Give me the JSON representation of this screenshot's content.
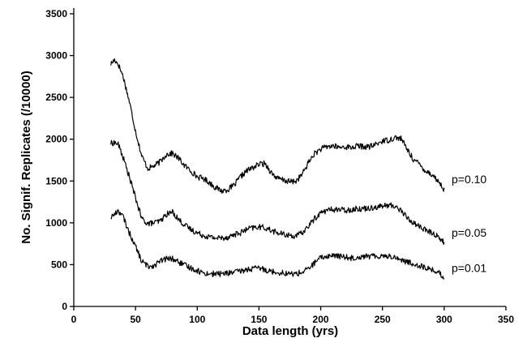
{
  "chart_data": {
    "type": "line",
    "title": "",
    "xlabel": "Data length (yrs)",
    "ylabel": "No. Signif. Replicates (/10000)",
    "xlim": [
      0,
      350
    ],
    "ylim": [
      0,
      3500
    ],
    "xticks": [
      "0",
      "50",
      "100",
      "150",
      "200",
      "250",
      "300",
      "350"
    ],
    "yticks": [
      "0",
      "500",
      "1000",
      "1500",
      "2000",
      "2500",
      "3000",
      "3500"
    ],
    "grid": false,
    "legend": "none",
    "line_color": "#000000",
    "series": [
      {
        "name": "p=0.10",
        "x": [
          30,
          33,
          36,
          40,
          45,
          50,
          55,
          60,
          65,
          70,
          75,
          80,
          85,
          90,
          95,
          100,
          105,
          110,
          115,
          120,
          125,
          130,
          135,
          140,
          145,
          150,
          155,
          160,
          165,
          170,
          175,
          180,
          185,
          190,
          195,
          200,
          205,
          210,
          215,
          220,
          225,
          230,
          235,
          240,
          245,
          250,
          255,
          260,
          265,
          270,
          275,
          280,
          285,
          290,
          295,
          300
        ],
        "y": [
          2900,
          2950,
          2900,
          2750,
          2450,
          2100,
          1800,
          1650,
          1680,
          1730,
          1820,
          1830,
          1770,
          1680,
          1620,
          1550,
          1530,
          1480,
          1420,
          1380,
          1400,
          1450,
          1550,
          1620,
          1660,
          1700,
          1710,
          1600,
          1530,
          1510,
          1490,
          1500,
          1580,
          1720,
          1830,
          1880,
          1910,
          1920,
          1900,
          1910,
          1900,
          1920,
          1910,
          1910,
          1940,
          1980,
          1990,
          2020,
          2010,
          1880,
          1760,
          1700,
          1620,
          1580,
          1500,
          1400
        ]
      },
      {
        "name": "p=0.05",
        "x": [
          30,
          33,
          36,
          40,
          45,
          50,
          55,
          60,
          65,
          70,
          75,
          80,
          85,
          90,
          95,
          100,
          105,
          110,
          115,
          120,
          125,
          130,
          135,
          140,
          145,
          150,
          155,
          160,
          165,
          170,
          175,
          180,
          185,
          190,
          195,
          200,
          205,
          210,
          215,
          220,
          225,
          230,
          235,
          240,
          245,
          250,
          255,
          260,
          265,
          270,
          275,
          280,
          285,
          290,
          295,
          300
        ],
        "y": [
          1950,
          1960,
          1940,
          1780,
          1550,
          1300,
          1050,
          990,
          1000,
          1020,
          1100,
          1130,
          1040,
          970,
          920,
          880,
          850,
          830,
          820,
          820,
          830,
          860,
          880,
          920,
          940,
          950,
          940,
          910,
          880,
          860,
          850,
          840,
          880,
          960,
          1050,
          1120,
          1150,
          1160,
          1160,
          1150,
          1160,
          1170,
          1170,
          1180,
          1190,
          1200,
          1210,
          1200,
          1150,
          1060,
          1000,
          960,
          910,
          880,
          840,
          760
        ]
      },
      {
        "name": "p=0.01",
        "x": [
          30,
          33,
          36,
          40,
          45,
          50,
          55,
          60,
          65,
          70,
          75,
          80,
          85,
          90,
          95,
          100,
          105,
          110,
          115,
          120,
          125,
          130,
          135,
          140,
          145,
          150,
          155,
          160,
          165,
          170,
          175,
          180,
          185,
          190,
          195,
          200,
          205,
          210,
          215,
          220,
          225,
          230,
          235,
          240,
          245,
          250,
          255,
          260,
          265,
          270,
          275,
          280,
          285,
          290,
          295,
          300
        ],
        "y": [
          1070,
          1100,
          1150,
          1070,
          880,
          720,
          540,
          480,
          490,
          540,
          570,
          570,
          530,
          490,
          460,
          430,
          400,
          390,
          390,
          390,
          400,
          410,
          420,
          440,
          450,
          460,
          440,
          420,
          410,
          400,
          390,
          390,
          410,
          450,
          520,
          580,
          600,
          610,
          600,
          590,
          580,
          590,
          600,
          600,
          600,
          610,
          600,
          590,
          560,
          530,
          510,
          490,
          460,
          440,
          410,
          340
        ]
      }
    ]
  }
}
